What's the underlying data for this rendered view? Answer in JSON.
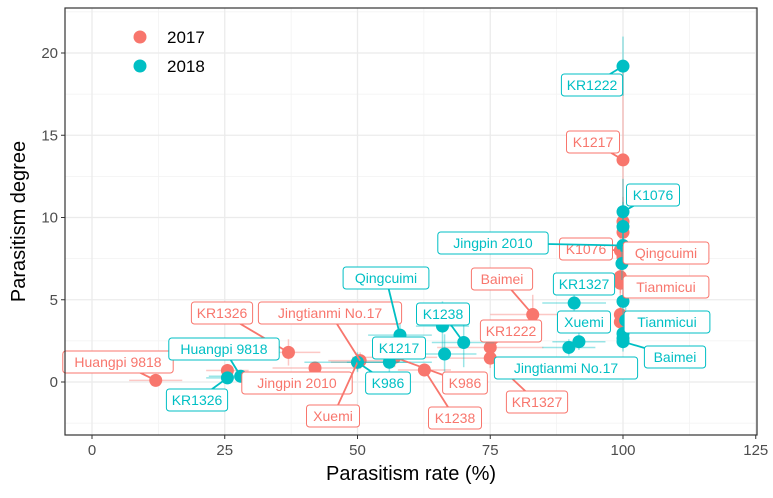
{
  "chart_data": {
    "type": "scatter",
    "xlabel": "Parasitism rate (%)",
    "ylabel": "Parasitism degree",
    "xlim": [
      -5,
      125
    ],
    "ylim": [
      -3,
      22.5
    ],
    "xticks": [
      0,
      25,
      50,
      75,
      100,
      125
    ],
    "yticks": [
      0,
      5,
      10,
      15,
      20
    ],
    "grid": true,
    "legend": {
      "placement": "top-left",
      "entries": [
        "2017",
        "2018"
      ]
    },
    "series": [
      {
        "name": "2017",
        "color": "#F8766D",
        "points": [
          {
            "label": "Huangpi 9818",
            "x": 12,
            "y": 0.1,
            "xerr": 5,
            "yerr": 0.2
          },
          {
            "label": "",
            "x": 25.5,
            "y": 0.7,
            "xerr": 4,
            "yerr": 0.4
          },
          {
            "label": "KR1326",
            "x": 37,
            "y": 1.8,
            "xerr": 6,
            "yerr": 0.8
          },
          {
            "label": "Jingpin 2010",
            "x": 42,
            "y": 0.85,
            "xerr": 8,
            "yerr": 0.4
          },
          {
            "label": "Jingtianmi No.17",
            "x": 50.5,
            "y": 1.3,
            "xerr": 6,
            "yerr": 0.5
          },
          {
            "label": "Xuemi",
            "x": 50,
            "y": 1.2,
            "xerr": 5,
            "yerr": 0.5
          },
          {
            "label": "K986",
            "x": 57,
            "y": 1.5,
            "xerr": 8,
            "yerr": 0.6
          },
          {
            "label": "K1238",
            "x": 62.6,
            "y": 0.73,
            "xerr": 5,
            "yerr": 0.4
          },
          {
            "label": "KR1222",
            "x": 75,
            "y": 2.1,
            "xerr": 10,
            "yerr": 0.8
          },
          {
            "label": "KR1327",
            "x": 75,
            "y": 1.45,
            "xerr": 8,
            "yerr": 0.6
          },
          {
            "label": "Baimei",
            "x": 83,
            "y": 4.1,
            "xerr": 8,
            "yerr": 1.2
          },
          {
            "label": "K1217",
            "x": 100,
            "y": 13.5,
            "xerr": 0,
            "yerr": 6
          },
          {
            "label": "",
            "x": 100,
            "y": 9.75,
            "xerr": 0,
            "yerr": 1.5
          },
          {
            "label": "",
            "x": 100,
            "y": 9.1,
            "xerr": 0,
            "yerr": 1.5
          },
          {
            "label": "K1076",
            "x": 99.5,
            "y": 8.0,
            "xerr": 0,
            "yerr": 1.5
          },
          {
            "label": "Qingcuimi",
            "x": 100,
            "y": 7.6,
            "xerr": 0,
            "yerr": 1.2
          },
          {
            "label": "",
            "x": 99.5,
            "y": 6.4,
            "xerr": 0,
            "yerr": 1
          },
          {
            "label": "Tianmicui",
            "x": 99.5,
            "y": 6.0,
            "xerr": 0,
            "yerr": 1
          },
          {
            "label": "",
            "x": 99.5,
            "y": 4.1,
            "xerr": 0,
            "yerr": 1
          },
          {
            "label": "",
            "x": 99.5,
            "y": 3.65,
            "xerr": 0,
            "yerr": 1
          }
        ]
      },
      {
        "name": "2018",
        "color": "#00BFC4",
        "points": [
          {
            "label": "KR1326",
            "x": 25.5,
            "y": 0.25,
            "xerr": 4,
            "yerr": 0.2
          },
          {
            "label": "Huangpi 9818",
            "x": 28,
            "y": 0.35,
            "xerr": 6,
            "yerr": 0.2
          },
          {
            "label": "K986",
            "x": 50,
            "y": 1.2,
            "xerr": 10,
            "yerr": 0.6
          },
          {
            "label": "K1217",
            "x": 56,
            "y": 1.2,
            "xerr": 8,
            "yerr": 0.6
          },
          {
            "label": "Qingcuimi",
            "x": 58,
            "y": 2.85,
            "xerr": 6,
            "yerr": 1.5
          },
          {
            "label": "",
            "x": 66,
            "y": 3.4,
            "xerr": 5,
            "yerr": 1.5
          },
          {
            "label": "",
            "x": 66.4,
            "y": 1.7,
            "xerr": 6,
            "yerr": 1.2
          },
          {
            "label": "K1238",
            "x": 70,
            "y": 2.4,
            "xerr": 6,
            "yerr": 1.5
          },
          {
            "label": "Jingtianmi No.17",
            "x": 89.8,
            "y": 2.1,
            "xerr": 5,
            "yerr": 0.5
          },
          {
            "label": "Xuemi",
            "x": 91.7,
            "y": 2.45,
            "xerr": 5,
            "yerr": 0.5
          },
          {
            "label": "KR1327",
            "x": 90.8,
            "y": 4.8,
            "xerr": 6,
            "yerr": 0.6
          },
          {
            "label": "KR1222",
            "x": 100,
            "y": 19.2,
            "xerr": 0,
            "yerr": 1.8
          },
          {
            "label": "K1076",
            "x": 100,
            "y": 10.35,
            "xerr": 0,
            "yerr": 2
          },
          {
            "label": "",
            "x": 100,
            "y": 9.45,
            "xerr": 0,
            "yerr": 1.5
          },
          {
            "label": "Jingpin 2010",
            "x": 100,
            "y": 8.3,
            "xerr": 0,
            "yerr": 1.2
          },
          {
            "label": "",
            "x": 99.8,
            "y": 7.2,
            "xerr": 0,
            "yerr": 1
          },
          {
            "label": "",
            "x": 100,
            "y": 4.9,
            "xerr": 0,
            "yerr": 0.8
          },
          {
            "label": "Tianmicui",
            "x": 100.5,
            "y": 3.75,
            "xerr": 0,
            "yerr": 0.8
          },
          {
            "label": "",
            "x": 100,
            "y": 2.95,
            "xerr": 0,
            "yerr": 0.6
          },
          {
            "label": "",
            "x": 100,
            "y": 2.65,
            "xerr": 0,
            "yerr": 0.6
          },
          {
            "label": "Baimei",
            "x": 100,
            "y": 2.45,
            "xerr": 0,
            "yerr": 0.6
          }
        ]
      }
    ]
  }
}
